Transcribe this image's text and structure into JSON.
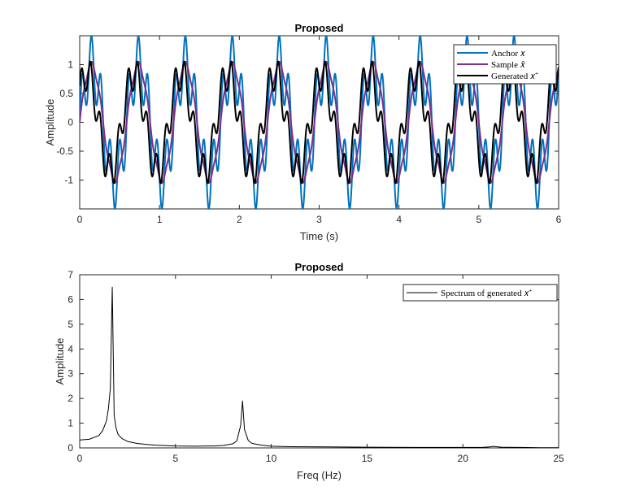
{
  "chart_data": [
    {
      "type": "line",
      "title": "Proposed",
      "xlabel": "Time (s)",
      "ylabel": "Amplitude",
      "xlim": [
        0,
        6
      ],
      "ylim": [
        -1.5,
        1.5
      ],
      "xticks": [
        0,
        1,
        2,
        3,
        4,
        5,
        6
      ],
      "xtick_labels": [
        "0",
        "1",
        "2",
        "3",
        "4",
        "5",
        "6"
      ],
      "yticks": [
        -1,
        -0.5,
        0,
        0.5,
        1
      ],
      "ytick_labels": [
        "-1",
        "-0.5",
        "0",
        "0.5",
        "1"
      ],
      "legend_position": "top-right",
      "grid": false,
      "series": [
        {
          "name": "Anchor x",
          "legend_label": "Anchor 𝑥",
          "color": "#0072BD",
          "formula": "sin(2*pi*1.7*t) + 0.5*sin(2*pi*8.5*t)",
          "components": [
            {
              "amplitude": 1.0,
              "frequency_hz": 1.7,
              "phase": 0
            },
            {
              "amplitude": 0.5,
              "frequency_hz": 8.5,
              "phase": 0
            }
          ]
        },
        {
          "name": "Sample x̂",
          "legend_label": "Sample 𝑥̂",
          "color": "#7E2F8E",
          "formula": "sin(2*pi*1.7*t) + 0.05*sin(2*pi*8.5*t)",
          "components": [
            {
              "amplitude": 1.0,
              "frequency_hz": 1.7,
              "phase": 0
            },
            {
              "amplitude": 0.05,
              "frequency_hz": 8.5,
              "phase": 0
            }
          ]
        },
        {
          "name": "Generated x⁺",
          "legend_label": "Generated 𝑥⁺",
          "color": "#000000",
          "formula": "0.85*sin(2*pi*1.7*t+0.6) + 0.3*sin(2*pi*8.5*t+0.5)",
          "components": [
            {
              "amplitude": 0.85,
              "frequency_hz": 1.7,
              "phase": 0.6
            },
            {
              "amplitude": 0.3,
              "frequency_hz": 8.5,
              "phase": 0.5
            }
          ]
        }
      ]
    },
    {
      "type": "line",
      "title": "Proposed",
      "xlabel": "Freq (Hz)",
      "ylabel": "Amplitude",
      "xlim": [
        0,
        25
      ],
      "ylim": [
        0,
        7
      ],
      "xticks": [
        0,
        5,
        10,
        15,
        20,
        25
      ],
      "xtick_labels": [
        "0",
        "5",
        "10",
        "15",
        "20",
        "25"
      ],
      "yticks": [
        0,
        1,
        2,
        3,
        4,
        5,
        6,
        7
      ],
      "ytick_labels": [
        "0",
        "1",
        "2",
        "3",
        "4",
        "5",
        "6",
        "7"
      ],
      "legend_position": "top-right",
      "grid": false,
      "series": [
        {
          "name": "Spectrum of generated x⁺",
          "legend_label": "Spectrum of generated 𝑥⁺",
          "color": "#000000",
          "x": [
            0,
            0.5,
            1.0,
            1.2,
            1.4,
            1.5,
            1.6,
            1.7,
            1.8,
            1.9,
            2.0,
            2.2,
            2.5,
            3.0,
            3.5,
            4.0,
            5.0,
            6.0,
            7.0,
            7.5,
            8.0,
            8.2,
            8.4,
            8.5,
            8.6,
            8.8,
            9.0,
            9.5,
            10.0,
            11.0,
            13.0,
            15.0,
            18.0,
            20.0,
            21.0,
            21.4,
            21.6,
            22.0,
            23.0,
            24.0,
            25.0
          ],
          "y": [
            0.32,
            0.35,
            0.5,
            0.7,
            1.1,
            1.6,
            2.4,
            6.5,
            1.3,
            0.8,
            0.55,
            0.38,
            0.26,
            0.18,
            0.14,
            0.11,
            0.08,
            0.07,
            0.08,
            0.1,
            0.17,
            0.28,
            0.9,
            1.9,
            0.75,
            0.3,
            0.18,
            0.11,
            0.07,
            0.05,
            0.04,
            0.03,
            0.02,
            0.02,
            0.02,
            0.04,
            0.06,
            0.03,
            0.02,
            0.01,
            0.01
          ]
        }
      ]
    }
  ]
}
